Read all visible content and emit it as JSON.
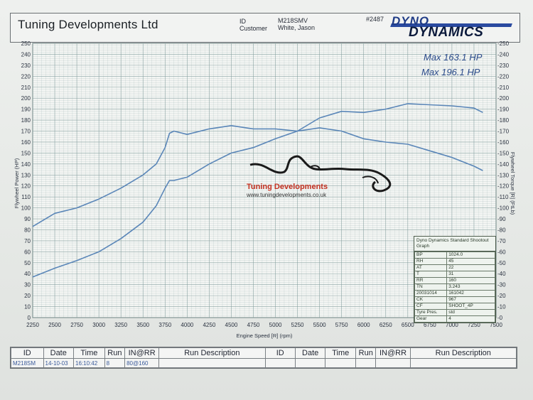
{
  "header": {
    "company": "Tuning Developments Ltd",
    "id_label": "ID",
    "customer_label": "Customer",
    "id_value": "M218SMV",
    "customer_value": "White, Jason",
    "run_number": "#2487",
    "logo_top": "DYNO",
    "logo_bottom": "DYNAMICS"
  },
  "watermark": {
    "name": "Tuning Developments",
    "url": "www.tuningdevelopments.co.uk"
  },
  "colors": {
    "curve": "#5a86b8",
    "grid": "#7f9a9a",
    "brand": "#c43020"
  },
  "chart_data": {
    "type": "line",
    "xlabel": "Engine Speed [R] (rpm)",
    "ylabel_left": "Flywheel Power (HP)",
    "ylabel_right": "Flywheel Torque [R] (FtLb)",
    "xlim": [
      2250,
      7500
    ],
    "ylim": [
      0,
      250
    ],
    "x_ticks": [
      2250,
      2500,
      2750,
      3000,
      3250,
      3500,
      3750,
      4000,
      4250,
      4500,
      4750,
      5000,
      5250,
      5500,
      5750,
      6000,
      6250,
      6500,
      6750,
      7000,
      7250,
      7500
    ],
    "y_ticks": [
      0,
      10,
      20,
      30,
      40,
      50,
      60,
      70,
      80,
      90,
      100,
      110,
      120,
      130,
      140,
      150,
      160,
      170,
      180,
      190,
      200,
      210,
      220,
      230,
      240,
      250
    ],
    "grid": true,
    "annotations": [
      "Max 163.1 HP",
      "Max 196.1 HP"
    ],
    "series": [
      {
        "x": [
          2250,
          2500,
          2750,
          3000,
          3250,
          3500,
          3650,
          3750,
          3800,
          3850,
          4000,
          4250,
          4500,
          4750,
          5000,
          5250,
          5500,
          5750,
          6000,
          6250,
          6500,
          6750,
          7000,
          7250,
          7350
        ],
        "values": [
          37,
          45,
          52,
          60,
          72,
          87,
          102,
          118,
          125,
          125,
          128,
          140,
          150,
          155,
          163,
          170,
          182,
          188,
          187,
          190,
          195,
          194,
          193,
          191,
          187
        ]
      },
      {
        "x": [
          2250,
          2500,
          2750,
          3000,
          3250,
          3500,
          3650,
          3750,
          3800,
          3850,
          4000,
          4250,
          4500,
          4750,
          5000,
          5250,
          5500,
          5750,
          6000,
          6250,
          6500,
          6750,
          7000,
          7250,
          7350
        ],
        "values": [
          83,
          95,
          100,
          108,
          118,
          130,
          140,
          155,
          168,
          170,
          167,
          172,
          175,
          172,
          172,
          170,
          173,
          170,
          163,
          160,
          158,
          152,
          146,
          138,
          134
        ]
      }
    ]
  },
  "info_box": {
    "title": "Dyno Dynamics Standard Shootout Graph",
    "rows": [
      {
        "k": "BP",
        "v": "1024.0"
      },
      {
        "k": "RH",
        "v": "45"
      },
      {
        "k": "AT",
        "v": "22"
      },
      {
        "k": "T",
        "v": "31"
      },
      {
        "k": "RR",
        "v": "160"
      },
      {
        "k": "TN",
        "v": "3.243"
      },
      {
        "k": "20031014",
        "v": "161042"
      },
      {
        "k": "CK",
        "v": "967"
      },
      {
        "k": "CF",
        "v": "SHOOT_4P"
      },
      {
        "k": "Tyre Pres.",
        "v": "std"
      },
      {
        "k": "Gear",
        "v": "4"
      }
    ]
  },
  "run_table": {
    "headers": [
      "ID",
      "Date",
      "Time",
      "Run",
      "IN@RR",
      "Run Description",
      "ID",
      "Date",
      "Time",
      "Run",
      "IN@RR",
      "Run Description"
    ],
    "row": [
      "M218SM",
      "14-10-03",
      "16:10:42",
      "8",
      "80@160",
      "",
      "",
      "",
      "",
      "",
      "",
      ""
    ]
  }
}
